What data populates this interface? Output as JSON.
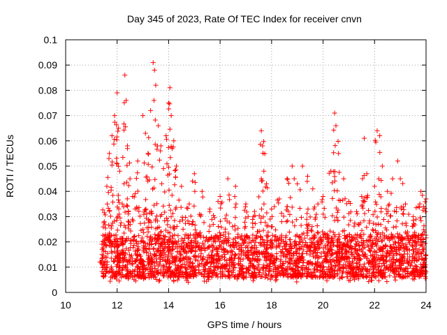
{
  "chart_data": {
    "type": "scatter",
    "title": "Day 345 of 2023, Rate Of TEC Index for receiver cnvn",
    "xlabel": "GPS time / hours",
    "ylabel": "ROTI / TECUs",
    "xlim": [
      10,
      24
    ],
    "ylim": [
      0,
      0.1
    ],
    "x_ticks": [
      "10",
      "12",
      "14",
      "16",
      "18",
      "20",
      "22",
      "24"
    ],
    "y_ticks": [
      "0",
      "0.01",
      "0.02",
      "0.03",
      "0.04",
      "0.05",
      "0.06",
      "0.07",
      "0.08",
      "0.09",
      "0.1"
    ],
    "grid": true,
    "marker": "+",
    "color": "#ff0000",
    "series": [
      {
        "points": [
          [
            11.4,
            0.012
          ],
          [
            11.5,
            0.028
          ],
          [
            11.6,
            0.042
          ],
          [
            11.7,
            0.055
          ],
          [
            11.8,
            0.062
          ],
          [
            11.9,
            0.07
          ],
          [
            12.0,
            0.079
          ],
          [
            12.05,
            0.065
          ],
          [
            12.1,
            0.048
          ],
          [
            12.2,
            0.035
          ],
          [
            12.3,
            0.086
          ],
          [
            12.35,
            0.076
          ],
          [
            12.4,
            0.058
          ],
          [
            12.5,
            0.045
          ],
          [
            12.6,
            0.038
          ],
          [
            12.8,
            0.052
          ],
          [
            13.0,
            0.07
          ],
          [
            13.1,
            0.063
          ],
          [
            13.2,
            0.055
          ],
          [
            13.3,
            0.072
          ],
          [
            13.4,
            0.091
          ],
          [
            13.45,
            0.088
          ],
          [
            13.5,
            0.082
          ],
          [
            13.6,
            0.066
          ],
          [
            13.7,
            0.058
          ],
          [
            13.8,
            0.049
          ],
          [
            13.9,
            0.062
          ],
          [
            14.0,
            0.075
          ],
          [
            14.05,
            0.081
          ],
          [
            14.1,
            0.07
          ],
          [
            14.2,
            0.06
          ],
          [
            14.3,
            0.05
          ],
          [
            14.5,
            0.042
          ],
          [
            14.8,
            0.035
          ],
          [
            15.0,
            0.047
          ],
          [
            15.3,
            0.04
          ],
          [
            15.6,
            0.032
          ],
          [
            16.0,
            0.038
          ],
          [
            16.3,
            0.045
          ],
          [
            16.6,
            0.042
          ],
          [
            17.0,
            0.035
          ],
          [
            17.3,
            0.03
          ],
          [
            17.6,
            0.064
          ],
          [
            17.65,
            0.058
          ],
          [
            17.7,
            0.048
          ],
          [
            17.8,
            0.043
          ],
          [
            18.0,
            0.033
          ],
          [
            18.3,
            0.037
          ],
          [
            18.6,
            0.045
          ],
          [
            18.8,
            0.05
          ],
          [
            19.0,
            0.043
          ],
          [
            19.2,
            0.05
          ],
          [
            19.4,
            0.046
          ],
          [
            19.6,
            0.041
          ],
          [
            19.8,
            0.035
          ],
          [
            20.0,
            0.038
          ],
          [
            20.3,
            0.048
          ],
          [
            20.45,
            0.071
          ],
          [
            20.5,
            0.066
          ],
          [
            20.6,
            0.055
          ],
          [
            20.8,
            0.045
          ],
          [
            21.0,
            0.036
          ],
          [
            21.3,
            0.032
          ],
          [
            21.5,
            0.038
          ],
          [
            21.6,
            0.061
          ],
          [
            21.7,
            0.047
          ],
          [
            22.0,
            0.042
          ],
          [
            22.1,
            0.064
          ],
          [
            22.2,
            0.062
          ],
          [
            22.3,
            0.05
          ],
          [
            22.5,
            0.04
          ],
          [
            22.7,
            0.045
          ],
          [
            22.9,
            0.052
          ],
          [
            23.0,
            0.045
          ],
          [
            23.2,
            0.035
          ],
          [
            23.5,
            0.03
          ],
          [
            23.8,
            0.04
          ],
          [
            23.9,
            0.034
          ],
          [
            24.0,
            0.037
          ]
        ],
        "dense_band": {
          "x_range": [
            11.4,
            24.0
          ],
          "y_typical_range": [
            0.004,
            0.025
          ]
        }
      }
    ]
  }
}
